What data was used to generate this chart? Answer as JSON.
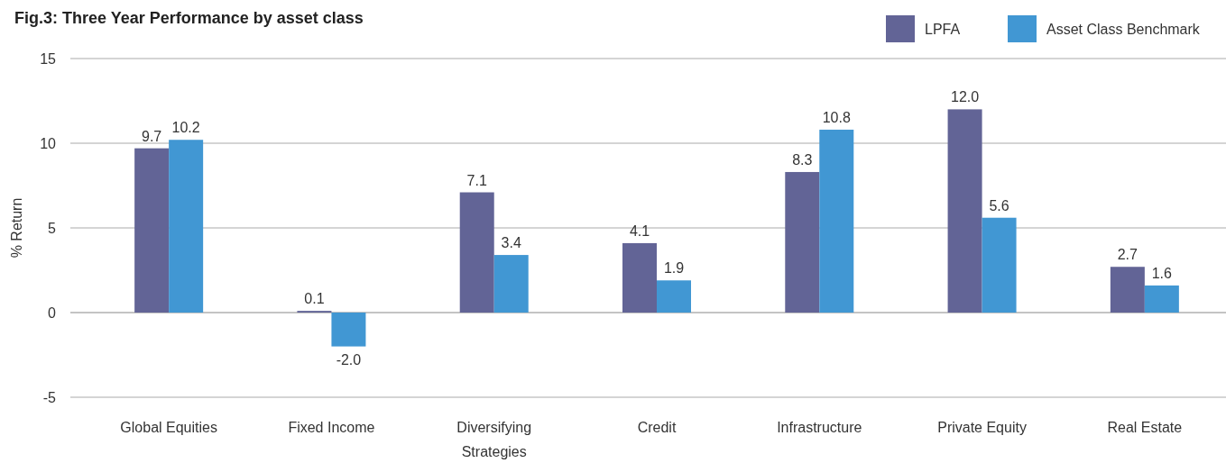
{
  "chart_data": {
    "type": "bar",
    "title": "Fig.3: Three Year Performance by asset class",
    "ylabel": "% Return",
    "categories": [
      "Global Equities",
      "Fixed Income",
      "Diversifying Strategies",
      "Credit",
      "Infrastructure",
      "Private Equity",
      "Real Estate"
    ],
    "series": [
      {
        "name": "LPFA",
        "color": "#626496",
        "values": [
          9.7,
          0.1,
          7.1,
          4.1,
          8.3,
          12.0,
          2.7
        ],
        "value_labels": [
          "9.7",
          "0.1",
          "7.1",
          "4.1",
          "8.3",
          "12.0",
          "2.7"
        ]
      },
      {
        "name": "Asset Class Benchmark",
        "color": "#4197d3",
        "values": [
          10.2,
          -2.0,
          3.4,
          1.9,
          10.8,
          5.6,
          1.6
        ],
        "value_labels": [
          "10.2",
          "-2.0",
          "3.4",
          "1.9",
          "10.8",
          "5.6",
          "1.6"
        ]
      }
    ],
    "ylim": [
      -5,
      15
    ],
    "yticks": [
      -5,
      0,
      5,
      10,
      15
    ],
    "grid": "y",
    "legend": "top right"
  }
}
